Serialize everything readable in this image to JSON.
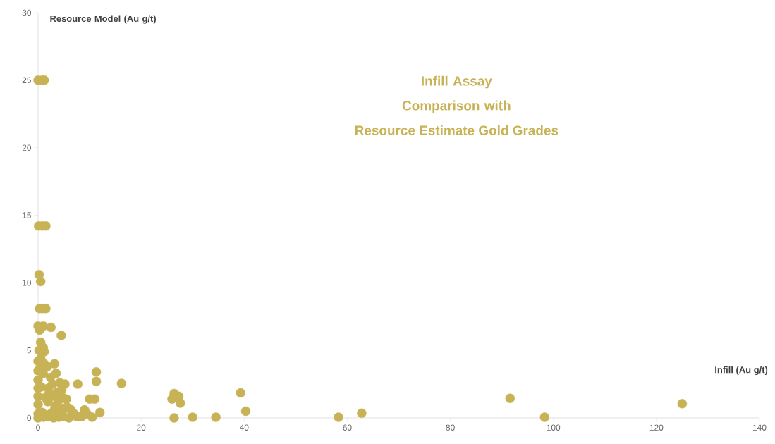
{
  "chart_data": {
    "type": "scatter",
    "title": "Infill Assay Comparison with",
    "subtitle": "Resource Estimate Gold Grades",
    "xlabel": "Infill (Au g/t)",
    "ylabel": "Resource Model (Au g/t)",
    "color": "#c8b256",
    "xlim": [
      0,
      140
    ],
    "ylim": [
      0,
      30
    ],
    "xticks": [
      0,
      20,
      40,
      60,
      80,
      100,
      120,
      140
    ],
    "yticks": [
      0,
      5,
      10,
      15,
      20,
      25,
      30
    ],
    "series": [
      {
        "color": "#c8b256",
        "x": [
          0,
          0.8,
          1.2,
          0.1,
          0.8,
          1.5,
          0.2,
          0.5,
          0.3,
          0.9,
          1.5,
          0,
          1,
          2.5,
          4.5,
          0.3,
          0.5,
          1,
          0.2,
          1.2,
          0,
          0.5,
          1.2,
          0,
          0.4,
          1,
          1.8,
          0,
          2.4,
          3.2,
          0,
          0.6,
          2,
          2.8,
          3.5,
          4.2,
          0,
          1.4,
          2.1,
          2.9,
          3.7,
          4.6,
          5.2,
          0,
          1.9,
          3.3,
          4,
          4.8,
          5.5,
          0,
          0.8,
          2.4,
          3.2,
          4,
          4.8,
          5.6,
          6.4,
          0,
          1,
          2,
          3,
          4,
          5,
          6,
          7,
          8,
          7.7,
          11.3,
          11.3,
          16.2,
          9.5,
          10,
          11,
          12,
          10.5,
          8.5,
          9,
          6,
          7.5,
          26,
          26.4,
          27.3,
          27.6,
          26.4,
          30,
          34.5,
          39.3,
          40.3,
          58.3,
          62.8,
          91.6,
          98.3,
          125
        ],
        "values": [
          25,
          25,
          25,
          14.2,
          14.2,
          14.2,
          10.6,
          10.1,
          8.1,
          8.1,
          8.1,
          6.8,
          6.8,
          6.7,
          6.1,
          6.5,
          5.6,
          5.2,
          5,
          4.9,
          4.2,
          4.4,
          4,
          3.5,
          3.6,
          3.3,
          3.8,
          2.8,
          3,
          4,
          2.2,
          2.3,
          2.2,
          2.5,
          3.3,
          2.6,
          1.6,
          1.5,
          1.8,
          1.6,
          1.9,
          2.1,
          2.5,
          1,
          1.2,
          0.9,
          1.3,
          1.5,
          1.4,
          0.3,
          0.4,
          0.3,
          0.6,
          0.4,
          0.7,
          0.8,
          0.6,
          0,
          0.05,
          0.1,
          0,
          0.05,
          0.1,
          0,
          0.3,
          0.1,
          2.5,
          3.4,
          2.7,
          2.55,
          0.3,
          1.4,
          1.4,
          0.4,
          0.05,
          0.1,
          0.6,
          0.7,
          0.1,
          1.4,
          1.8,
          1.6,
          1.1,
          0,
          0.05,
          0.05,
          1.85,
          0.5,
          0.05,
          0.35,
          1.45,
          0.05,
          1.05
        ]
      }
    ]
  }
}
